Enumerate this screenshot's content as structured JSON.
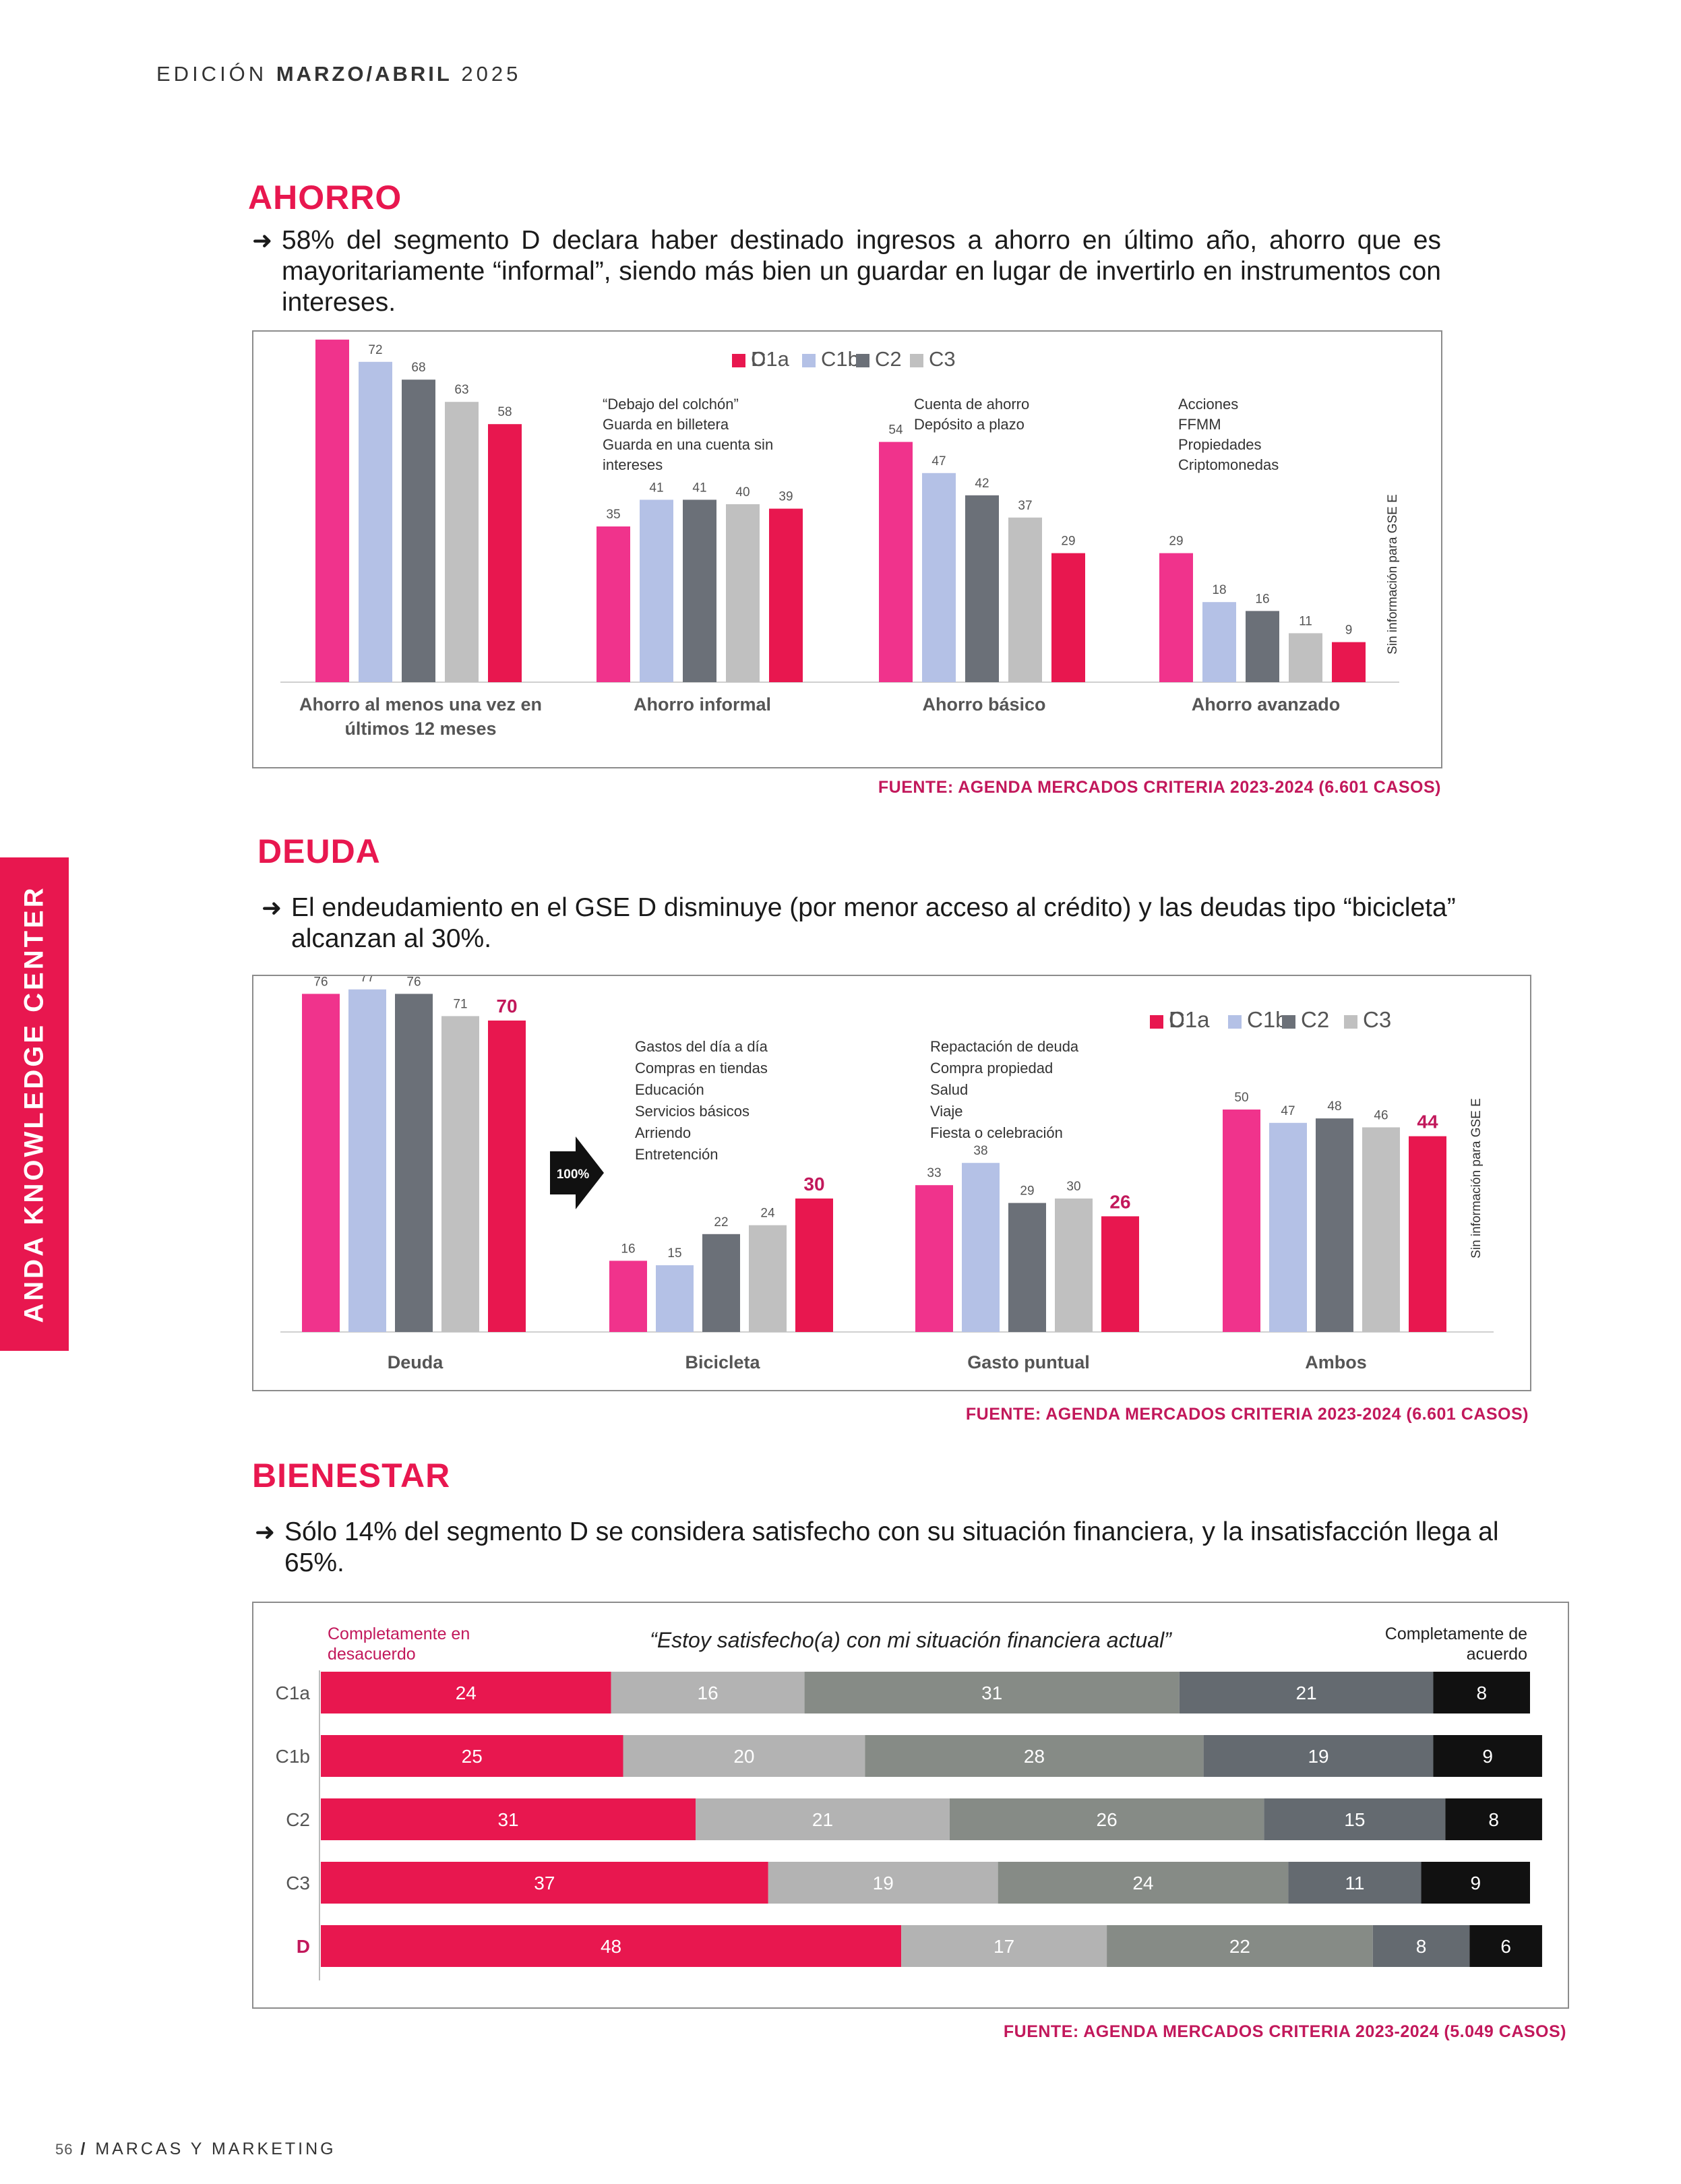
{
  "header": {
    "edition_prefix": "EDICIÓN",
    "edition_bold": "MARZO/ABRIL",
    "edition_year": "2025"
  },
  "side_tab": "ANDA KNOWLEDGE CENTER",
  "footer": {
    "page_number": "56",
    "separator": "/",
    "magazine": "MARCAS Y MARKETING"
  },
  "colors": {
    "C1a": "#f0338c",
    "C1b": "#b4c1e6",
    "C2": "#6b7078",
    "C3": "#c0c0c0",
    "D": "#e8174f",
    "accent": "#e8174f"
  },
  "sections": {
    "ahorro": {
      "title": "AHORRO",
      "bullet": "58% del segmento D declara haber destinado ingresos a ahorro en último año, ahorro que es mayoritariamente “informal”, siendo más bien un guardar en lugar de invertirlo en instrumentos con intereses.",
      "source": "FUENTE: AGENDA MERCADOS CRITERIA 2023-2024 (6.601 CASOS)"
    },
    "deuda": {
      "title": "DEUDA",
      "bullet": "El endeudamiento en el GSE D disminuye (por menor acceso al crédito) y las deudas tipo “bicicleta” alcanzan al 30%.",
      "source": "FUENTE: AGENDA MERCADOS CRITERIA 2023-2024 (6.601 CASOS)"
    },
    "bienestar": {
      "title": "BIENESTAR",
      "bullet": "Sólo 14% del segmento D se considera satisfecho con su situación financiera, y la insatisfacción llega al 65%.",
      "source": "FUENTE: AGENDA MERCADOS CRITERIA 2023-2024 (5.049 CASOS)"
    }
  },
  "chart_data": [
    {
      "type": "bar",
      "legend": [
        "C1a",
        "C1b",
        "C2",
        "C3",
        "D"
      ],
      "categories": [
        "Ahorro al menos una vez en últimos 12 meses",
        "Ahorro informal",
        "Ahorro básico",
        "Ahorro avanzado"
      ],
      "series": [
        {
          "name": "C1a",
          "values": [
            77,
            35,
            54,
            29
          ]
        },
        {
          "name": "C1b",
          "values": [
            72,
            41,
            47,
            18
          ]
        },
        {
          "name": "C2",
          "values": [
            68,
            41,
            42,
            16
          ]
        },
        {
          "name": "C3",
          "values": [
            63,
            40,
            37,
            11
          ]
        },
        {
          "name": "D",
          "values": [
            58,
            39,
            29,
            9
          ]
        }
      ],
      "annotations": [
        [
          "“Debajo del colchón”",
          "Guarda en billetera",
          "Guarda en una cuenta sin",
          "intereses"
        ],
        [
          "Cuenta de ahorro",
          "Depósito a plazo"
        ],
        [
          "Acciones",
          "FFMM",
          "Propiedades",
          "Criptomonedas"
        ]
      ],
      "side_note": "Sin información para GSE E",
      "legend_position": "top-center",
      "ylim": [
        0,
        100
      ],
      "grid": false
    },
    {
      "type": "bar",
      "legend": [
        "C1a",
        "C1b",
        "C2",
        "C3",
        "D"
      ],
      "categories": [
        "Deuda",
        "Bicicleta",
        "Gasto puntual",
        "Ambos"
      ],
      "series": [
        {
          "name": "C1a",
          "values": [
            76,
            16,
            33,
            50
          ]
        },
        {
          "name": "C1b",
          "values": [
            77,
            15,
            38,
            47
          ]
        },
        {
          "name": "C2",
          "values": [
            76,
            22,
            29,
            48
          ]
        },
        {
          "name": "C3",
          "values": [
            71,
            24,
            30,
            46
          ]
        },
        {
          "name": "D",
          "values": [
            70,
            30,
            26,
            44
          ]
        }
      ],
      "annotations": [
        [
          "Gastos del día a día",
          "Compras en tiendas",
          "Educación",
          "Servicios básicos",
          "Arriendo",
          "Entretención"
        ],
        [
          "Repactación de deuda",
          "Compra propiedad",
          "Salud",
          "Viaje",
          "Fiesta o celebración"
        ]
      ],
      "arrow_label": "100%",
      "side_note": "Sin información para GSE E",
      "legend_position": "top-right",
      "ylim": [
        0,
        100
      ],
      "grid": false
    },
    {
      "type": "bar",
      "orientation": "horizontal-stacked",
      "title": "“Estoy satisfecho(a) con mi situación financiera actual”",
      "left_label": "Completamente en desacuerdo",
      "right_label": "Completamente de acuerdo",
      "categories": [
        "C1a",
        "C1b",
        "C2",
        "C3",
        "D"
      ],
      "series": [
        {
          "values": [
            24,
            25,
            31,
            37,
            48
          ]
        },
        {
          "values": [
            16,
            20,
            21,
            19,
            17
          ]
        },
        {
          "values": [
            31,
            28,
            26,
            24,
            22
          ]
        },
        {
          "values": [
            21,
            19,
            15,
            11,
            8
          ]
        },
        {
          "values": [
            8,
            9,
            8,
            9,
            6
          ]
        }
      ],
      "segment_colors": [
        "#e8174f",
        "#b3b3b3",
        "#868b86",
        "#646a70",
        "#111111"
      ],
      "grid": false
    }
  ]
}
